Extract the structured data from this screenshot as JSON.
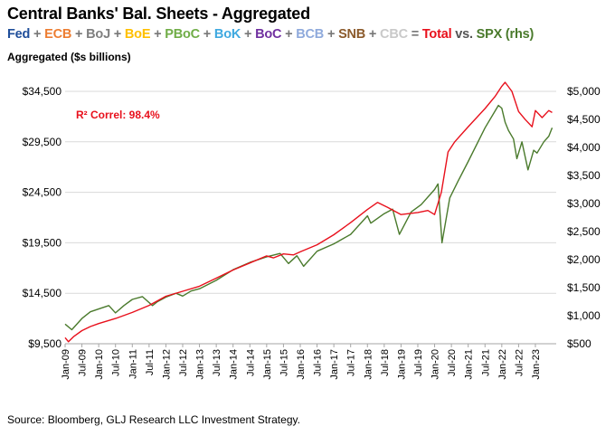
{
  "title": "Central Banks' Bal. Sheets - Aggregated",
  "subtitle_parts": [
    {
      "text": "Fed",
      "color": "#1f4e9a"
    },
    {
      "text": "+",
      "color": "#777777"
    },
    {
      "text": "ECB",
      "color": "#ed7d31"
    },
    {
      "text": "+",
      "color": "#777777"
    },
    {
      "text": "BoJ",
      "color": "#7f7f7f"
    },
    {
      "text": "+",
      "color": "#777777"
    },
    {
      "text": "BoE",
      "color": "#ffc000"
    },
    {
      "text": "+",
      "color": "#777777"
    },
    {
      "text": "PBoC",
      "color": "#70ad47"
    },
    {
      "text": "+",
      "color": "#777777"
    },
    {
      "text": "BoK",
      "color": "#3fa9e0"
    },
    {
      "text": "+",
      "color": "#777777"
    },
    {
      "text": "BoC",
      "color": "#7030a0"
    },
    {
      "text": "+",
      "color": "#777777"
    },
    {
      "text": "BCB",
      "color": "#8faadc"
    },
    {
      "text": "+",
      "color": "#777777"
    },
    {
      "text": "SNB",
      "color": "#8b5a2b"
    },
    {
      "text": "+",
      "color": "#777777"
    },
    {
      "text": "CBC",
      "color": "#c9c9c9"
    },
    {
      "text": "=",
      "color": "#777777"
    },
    {
      "text": "Total",
      "color": "#e8101c"
    },
    {
      "text": "vs.",
      "color": "#555555"
    },
    {
      "text": "SPX (rhs)",
      "color": "#4a7a2c"
    }
  ],
  "source": "Source: Bloomberg, GLJ Research LLC Investment Strategy.",
  "chart_data": {
    "type": "line",
    "ylabel": "Aggregated ($s billions)",
    "annotation": "R² Correl: 98.4%",
    "y_left": {
      "min": 9500,
      "max": 34500,
      "ticks": [
        "$9,500",
        "$14,500",
        "$19,500",
        "$24,500",
        "$29,500",
        "$34,500"
      ]
    },
    "y_right": {
      "min": 500,
      "max": 5000,
      "ticks": [
        "$500",
        "$1,000",
        "$1,500",
        "$2,000",
        "$2,500",
        "$3,000",
        "$3,500",
        "$4,000",
        "$4,500",
        "$5,000"
      ]
    },
    "x_ticks": [
      "Jan-09",
      "Jul-09",
      "Jan-10",
      "Jul-10",
      "Jan-11",
      "Jul-11",
      "Jan-12",
      "Jul-12",
      "Jan-13",
      "Jul-13",
      "Jan-14",
      "Jul-14",
      "Jan-15",
      "Jul-15",
      "Jan-16",
      "Jul-16",
      "Jan-17",
      "Jul-17",
      "Jan-18",
      "Jul-18",
      "Jan-19",
      "Jul-19",
      "Jan-20",
      "Jul-20",
      "Jan-21",
      "Jul-21",
      "Jan-22",
      "Jul-22",
      "Jan-23"
    ],
    "grid": true,
    "series": [
      {
        "name": "Total",
        "axis": "left",
        "color": "#e8101c",
        "x": [
          2009.0,
          2009.1,
          2009.25,
          2009.5,
          2009.75,
          2010.0,
          2010.5,
          2011.0,
          2011.5,
          2012.0,
          2012.5,
          2013.0,
          2013.5,
          2014.0,
          2014.5,
          2015.0,
          2015.2,
          2015.5,
          2015.8,
          2016.0,
          2016.5,
          2017.0,
          2017.5,
          2018.0,
          2018.3,
          2018.6,
          2019.0,
          2019.5,
          2019.8,
          2020.0,
          2020.2,
          2020.4,
          2020.6,
          2021.0,
          2021.5,
          2021.8,
          2022.0,
          2022.1,
          2022.3,
          2022.5,
          2022.7,
          2022.9,
          2023.0,
          2023.2,
          2023.4,
          2023.5
        ],
        "y": [
          10100,
          9700,
          10200,
          10800,
          11200,
          11500,
          12000,
          12600,
          13300,
          14200,
          14700,
          15200,
          16000,
          16800,
          17500,
          18200,
          18000,
          18400,
          18300,
          18600,
          19300,
          20300,
          21500,
          22800,
          23500,
          23000,
          22300,
          22500,
          22700,
          22300,
          24500,
          28500,
          29500,
          31000,
          32800,
          34000,
          35000,
          35400,
          34500,
          32500,
          31700,
          31000,
          32600,
          31900,
          32600,
          32400
        ]
      },
      {
        "name": "SPX",
        "axis": "right",
        "color": "#4a7a2c",
        "x": [
          2009.0,
          2009.2,
          2009.5,
          2009.75,
          2010.0,
          2010.3,
          2010.5,
          2010.75,
          2011.0,
          2011.3,
          2011.6,
          2011.75,
          2012.0,
          2012.3,
          2012.5,
          2012.75,
          2013.0,
          2013.5,
          2014.0,
          2014.5,
          2015.0,
          2015.4,
          2015.65,
          2015.9,
          2016.1,
          2016.5,
          2017.0,
          2017.5,
          2018.0,
          2018.1,
          2018.5,
          2018.75,
          2018.95,
          2019.3,
          2019.6,
          2020.0,
          2020.1,
          2020.22,
          2020.45,
          2020.7,
          2021.0,
          2021.5,
          2021.9,
          2022.0,
          2022.1,
          2022.2,
          2022.35,
          2022.45,
          2022.6,
          2022.78,
          2022.95,
          2023.05,
          2023.25,
          2023.4,
          2023.5
        ],
        "y": [
          850,
          750,
          950,
          1070,
          1120,
          1180,
          1050,
          1180,
          1290,
          1340,
          1180,
          1250,
          1330,
          1400,
          1350,
          1440,
          1480,
          1630,
          1820,
          1950,
          2050,
          2110,
          1930,
          2070,
          1880,
          2150,
          2280,
          2450,
          2780,
          2650,
          2820,
          2900,
          2450,
          2850,
          2980,
          3250,
          3350,
          2300,
          3100,
          3400,
          3750,
          4350,
          4750,
          4700,
          4450,
          4300,
          4150,
          3800,
          4100,
          3600,
          3950,
          3900,
          4100,
          4200,
          4350
        ]
      }
    ]
  }
}
